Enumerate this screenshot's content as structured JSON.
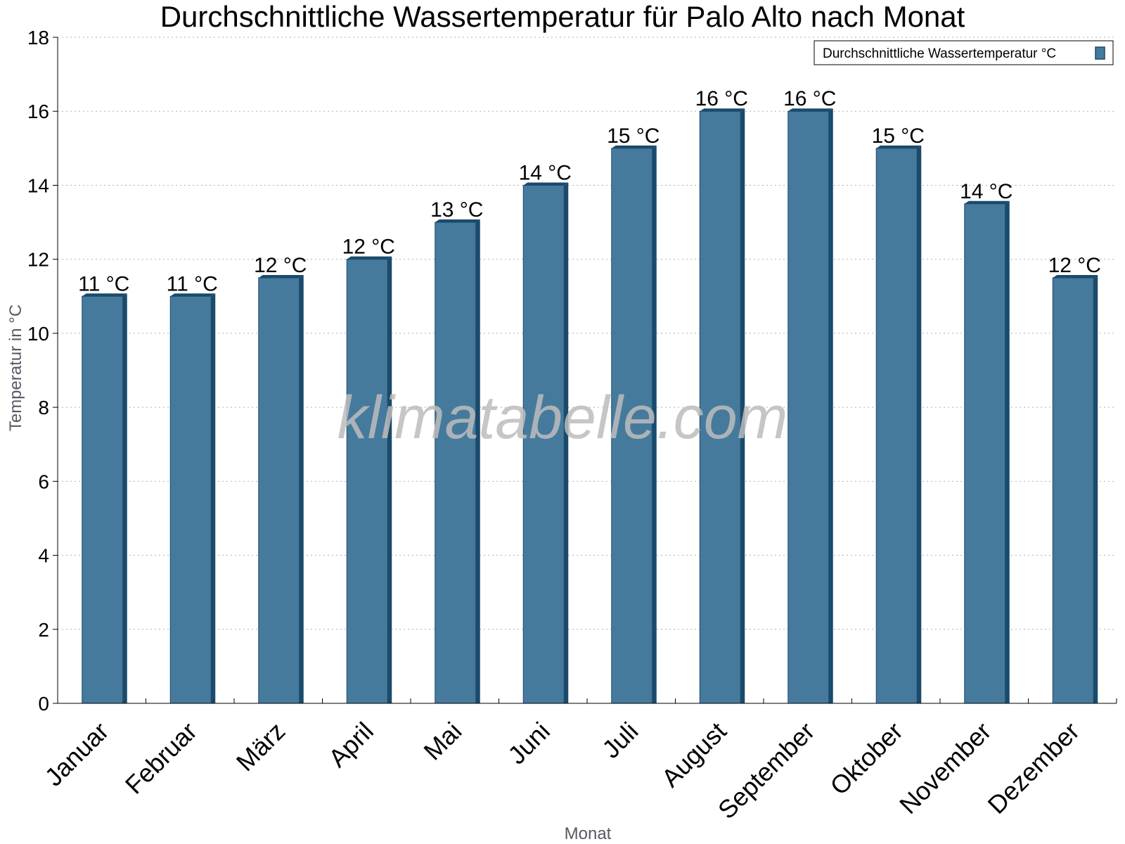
{
  "chart_data": {
    "type": "bar",
    "title": "Durchschnittliche Wassertemperatur für Palo Alto nach Monat",
    "xlabel": "Monat",
    "ylabel": "Temperatur in °C",
    "categories": [
      "Januar",
      "Februar",
      "März",
      "April",
      "Mai",
      "Juni",
      "Juli",
      "August",
      "September",
      "Oktober",
      "November",
      "Dezember"
    ],
    "series": [
      {
        "name": "Durchschnittliche Wassertemperatur °C",
        "values": [
          11,
          11,
          11.5,
          12,
          13,
          14,
          15,
          16,
          16,
          15,
          13.5,
          11.5
        ],
        "labels": [
          "11 °C",
          "11 °C",
          "12 °C",
          "12 °C",
          "13 °C",
          "14 °C",
          "15 °C",
          "16 °C",
          "16 °C",
          "15 °C",
          "14 °C",
          "12 °C"
        ],
        "color": "#457a9d",
        "edge_color": "#1b4a6b"
      }
    ],
    "yticks": [
      0,
      2,
      4,
      6,
      8,
      10,
      12,
      14,
      16,
      18
    ],
    "ylim": [
      0,
      18
    ],
    "grid": true,
    "legend_position": "top-right",
    "watermark": "klimatabelle.com"
  }
}
